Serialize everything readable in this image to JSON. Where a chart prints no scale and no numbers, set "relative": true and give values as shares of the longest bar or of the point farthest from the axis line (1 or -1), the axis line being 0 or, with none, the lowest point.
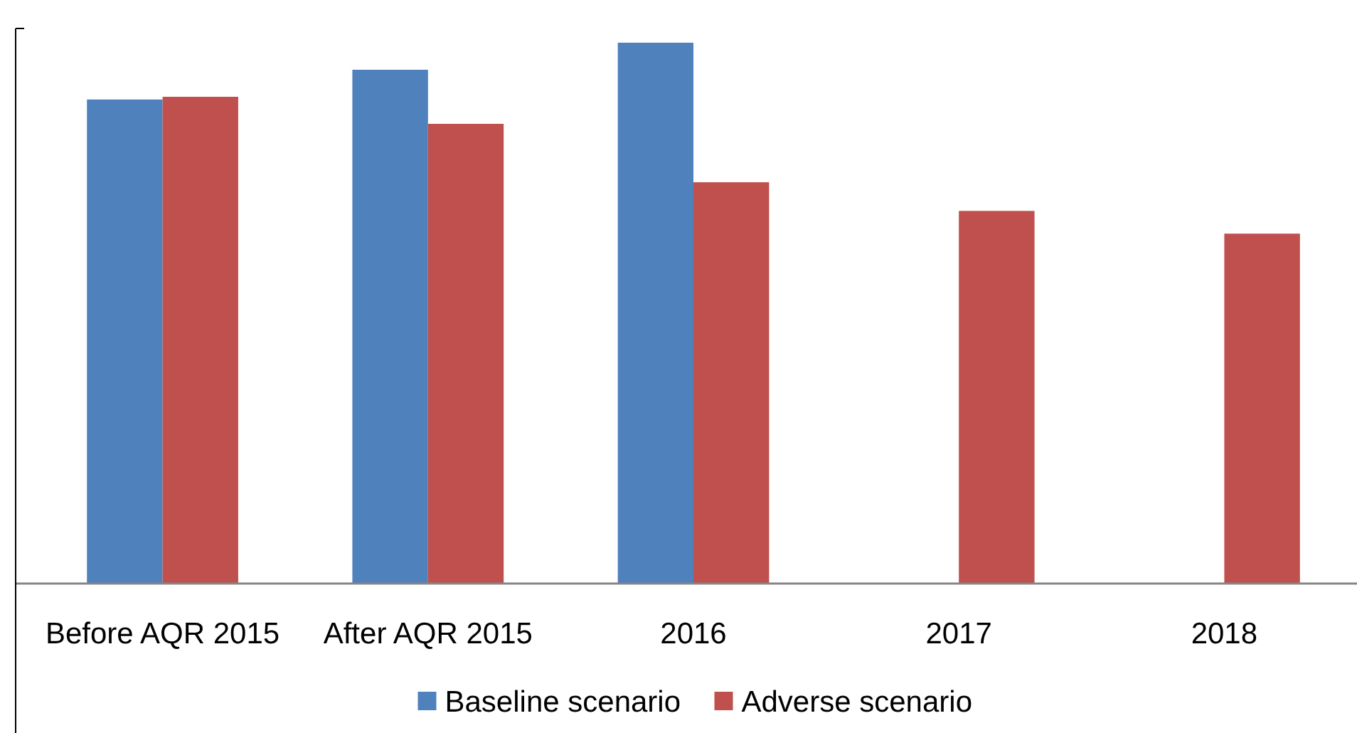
{
  "chart_data": {
    "type": "bar",
    "relative": true,
    "categories": [
      "Before AQR 2015",
      "After AQR 2015",
      "2016",
      "2017",
      "2018"
    ],
    "series": [
      {
        "name": "Baseline scenario",
        "color": "#4f81bd",
        "values": [
          0.895,
          0.95,
          1,
          null,
          null
        ]
      },
      {
        "name": "Adverse scenario",
        "color": "#c0504d",
        "values": [
          0.9,
          0.85,
          0.742,
          0.689,
          0.647
        ]
      }
    ],
    "legend": "bottom"
  }
}
